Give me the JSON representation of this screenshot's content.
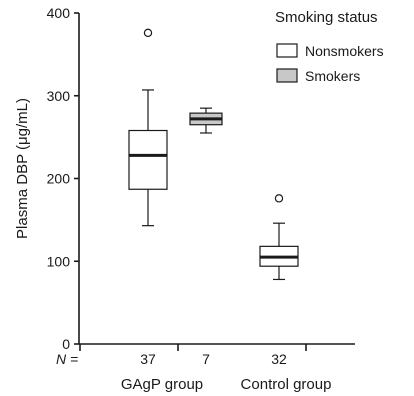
{
  "chart_data": {
    "type": "boxplot",
    "ylabel": "Plasma DBP (μg/mL)",
    "ylim": [
      0,
      400
    ],
    "yticks": [
      0,
      100,
      200,
      300,
      400
    ],
    "legend": {
      "title": "Smoking status",
      "placement": "top-right",
      "entries": [
        {
          "name": "Nonsmokers",
          "color": "#ffffff"
        },
        {
          "name": "Smokers",
          "color": "#c8c8c8"
        }
      ]
    },
    "n_label": "N =",
    "groups": [
      {
        "name": "GAgP group",
        "boxes": [
          0,
          1
        ]
      },
      {
        "name": "Control group",
        "boxes": [
          2
        ]
      }
    ],
    "boxes": [
      {
        "series": "Nonsmokers",
        "group": "GAgP group",
        "n": "37",
        "whisker_low": 143,
        "q1": 187,
        "median": 228,
        "q3": 258,
        "whisker_high": 307,
        "outliers": [
          376
        ]
      },
      {
        "series": "Smokers",
        "group": "GAgP group",
        "n": "7",
        "whisker_low": 255,
        "q1": 265,
        "median": 272,
        "q3": 279,
        "whisker_high": 285,
        "outliers": []
      },
      {
        "series": "Nonsmokers",
        "group": "Control group",
        "n": "32",
        "whisker_low": 78,
        "q1": 94,
        "median": 105,
        "q3": 118,
        "whisker_high": 146,
        "outliers": [
          176
        ]
      }
    ]
  }
}
